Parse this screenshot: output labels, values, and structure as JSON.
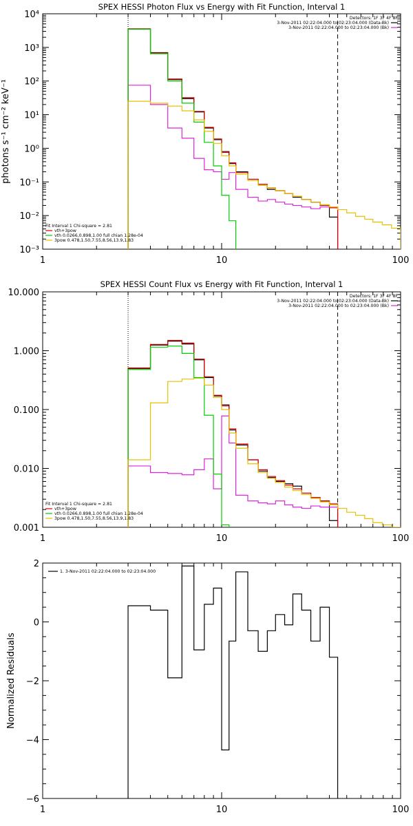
{
  "chart_data": [
    {
      "type": "line",
      "title": "SPEX HESSI Photon Flux vs Energy with Fit Function, Interval 1",
      "xlabel": "",
      "ylabel": "photons s⁻¹ cm⁻² keV⁻¹",
      "xscale": "log",
      "yscale": "log",
      "xlim": [
        1,
        100
      ],
      "ylim": [
        0.001,
        10000
      ],
      "x_ticks": [
        1,
        10,
        100
      ],
      "x_tick_labels": [
        "1",
        "10",
        "100"
      ],
      "y_ticks": [
        0.001,
        0.01,
        0.1,
        1,
        10,
        100,
        1000,
        10000
      ],
      "y_tick_labels": [
        "10⁻³",
        "10⁻²",
        "10⁻¹",
        "10⁰",
        "10¹",
        "10²",
        "10³",
        "10⁴"
      ],
      "grid": false,
      "vlines": [
        {
          "x": 3,
          "style": "dotted"
        },
        {
          "x": 44.5,
          "style": "dashed"
        }
      ],
      "legend_top_right": {
        "placement": "top-right",
        "header": "Detectors: 1F 3F 4F 8F",
        "lines": [
          {
            "text": "3-Nov-2011 02:22:04.000 to 02:23:04.000 (Data-Bk)",
            "color": "#000000"
          },
          {
            "text": "3-Nov-2011 02:22:04.000 to 02:23:04.000 (Bk)",
            "color": "#dd22dd"
          }
        ]
      },
      "legend_bottom_left": {
        "placement": "bottom-left",
        "header": "Fit Interval  1    Chi-square = 2.81",
        "lines": [
          {
            "text": "vth+3pow",
            "color": "#dd0000"
          },
          {
            "text": "vth 0.0266,0.898,1.00  full chian 1.28e-04",
            "color": "#00cc00"
          },
          {
            "text": "3pow 0.478,1.50,7.55,8.56,13.9,1.83",
            "color": "#e6c000"
          }
        ]
      },
      "series": [
        {
          "color": "#000000",
          "edges": [
            3,
            4,
            5,
            6,
            7,
            8,
            9,
            10,
            11,
            12,
            14,
            16,
            18,
            20,
            22.5,
            25,
            28,
            31.5,
            35.5,
            40,
            44.5
          ],
          "values": [
            3500,
            700,
            110,
            30,
            12,
            4,
            1.8,
            0.8,
            0.35,
            0.2,
            0.12,
            0.08,
            0.06,
            0.055,
            0.045,
            0.035,
            0.03,
            0.025,
            0.02,
            0.009
          ]
        },
        {
          "color": "#dd22dd",
          "edges": [
            3,
            4,
            5,
            6,
            7,
            8,
            9,
            10,
            11,
            12,
            14,
            16,
            18,
            20,
            22.5,
            25,
            28,
            31.5,
            35.5,
            40,
            44.5
          ],
          "values": [
            75,
            20,
            4,
            2,
            0.5,
            0.23,
            0.2,
            0.12,
            0.19,
            0.06,
            0.035,
            0.027,
            0.03,
            0.025,
            0.022,
            0.02,
            0.018,
            0.016,
            0.018,
            0.018
          ]
        },
        {
          "color": "#dd0000",
          "edges": [
            3,
            4,
            5,
            6,
            7,
            8,
            9,
            10,
            11,
            12,
            14,
            16,
            18,
            20,
            22.5,
            25,
            28,
            31.5,
            35.5,
            40,
            44.5
          ],
          "values": [
            3600,
            680,
            115,
            32,
            12.5,
            4.2,
            1.9,
            0.75,
            0.37,
            0.19,
            0.12,
            0.085,
            0.066,
            0.055,
            0.045,
            0.037,
            0.03,
            0.025,
            0.02,
            0.017
          ]
        },
        {
          "color": "#00cc00",
          "edges": [
            3,
            4,
            5,
            6,
            7,
            8,
            9,
            10,
            11,
            12,
            14
          ],
          "values": [
            3500,
            650,
            100,
            22,
            6,
            1.5,
            0.3,
            0.04,
            0.007,
            0.0009
          ]
        },
        {
          "color": "#e6c000",
          "edges": [
            3,
            4,
            5,
            6,
            7,
            8,
            9,
            10,
            11,
            12,
            14,
            16,
            18,
            20,
            22.5,
            25,
            28,
            31.5,
            35.5,
            40,
            44.5,
            50,
            56,
            63,
            70,
            79,
            89,
            100
          ],
          "values": [
            25,
            22,
            18,
            13,
            7,
            3.2,
            1.4,
            0.6,
            0.3,
            0.17,
            0.11,
            0.08,
            0.065,
            0.055,
            0.045,
            0.037,
            0.03,
            0.025,
            0.021,
            0.018,
            0.015,
            0.012,
            0.0095,
            0.0078,
            0.0064,
            0.0053,
            0.0042
          ]
        }
      ]
    },
    {
      "type": "line",
      "title": "SPEX HESSI Count Flux vs Energy with Fit Function, Interval 1",
      "xlabel": "",
      "ylabel": "",
      "xscale": "log",
      "yscale": "log",
      "xlim": [
        1,
        100
      ],
      "ylim": [
        0.001,
        10
      ],
      "x_ticks": [
        1,
        10,
        100
      ],
      "x_tick_labels": [
        "1",
        "10",
        "100"
      ],
      "y_ticks": [
        0.001,
        0.01,
        0.1,
        1,
        10
      ],
      "y_tick_labels": [
        "0.001",
        "0.010",
        "0.100",
        "1.000",
        "10.000"
      ],
      "grid": false,
      "vlines": [
        {
          "x": 3,
          "style": "dotted"
        },
        {
          "x": 44.5,
          "style": "dashed"
        }
      ],
      "legend_top_right": {
        "placement": "top-right",
        "header": "Detectors: 1F 3F 4F 8F",
        "lines": [
          {
            "text": "3-Nov-2011 02:22:04.000 to 02:23:04.000 (Data-Bk)",
            "color": "#000000"
          },
          {
            "text": "3-Nov-2011 02:22:04.000 to 02:23:04.000 (Bk)",
            "color": "#dd22dd"
          }
        ]
      },
      "legend_bottom_left": {
        "placement": "bottom-left",
        "header": "Fit Interval  1    Chi-square = 2.81",
        "lines": [
          {
            "text": "vth+3pow",
            "color": "#dd0000"
          },
          {
            "text": "vth 0.0266,0.898,1.00  full chian 1.28e-04",
            "color": "#00cc00"
          },
          {
            "text": "3pow 0.478,1.50,7.55,8.56,13.9,1.83",
            "color": "#e6c000"
          }
        ]
      },
      "series": [
        {
          "color": "#000000",
          "edges": [
            3,
            4,
            5,
            6,
            7,
            8,
            9,
            10,
            11,
            12,
            14,
            16,
            18,
            20,
            22.5,
            25,
            28,
            31.5,
            35.5,
            40,
            44.5
          ],
          "values": [
            0.5,
            1.25,
            1.45,
            1.3,
            0.7,
            0.35,
            0.17,
            0.12,
            0.045,
            0.025,
            0.014,
            0.009,
            0.007,
            0.006,
            0.0055,
            0.005,
            0.0038,
            0.0032,
            0.0028,
            0.0013
          ]
        },
        {
          "color": "#dd22dd",
          "edges": [
            3,
            4,
            5,
            6,
            7,
            8,
            9,
            10,
            11,
            12,
            14,
            16,
            18,
            20,
            22.5,
            25,
            28,
            31.5,
            35.5,
            40,
            44.5
          ],
          "values": [
            0.011,
            0.0085,
            0.0082,
            0.0078,
            0.0095,
            0.0145,
            0.0045,
            0.078,
            0.027,
            0.0035,
            0.0028,
            0.0026,
            0.0025,
            0.0028,
            0.0024,
            0.0022,
            0.0021,
            0.0023,
            0.0022,
            0.0022
          ]
        },
        {
          "color": "#dd0000",
          "edges": [
            3,
            4,
            5,
            6,
            7,
            8,
            9,
            10,
            11,
            12,
            14,
            16,
            18,
            20,
            22.5,
            25,
            28,
            31.5,
            35.5,
            40,
            44.5
          ],
          "values": [
            0.51,
            1.28,
            1.5,
            1.35,
            0.72,
            0.36,
            0.175,
            0.115,
            0.047,
            0.026,
            0.014,
            0.0095,
            0.0073,
            0.0062,
            0.0052,
            0.0045,
            0.0038,
            0.0032,
            0.0028,
            0.0025
          ]
        },
        {
          "color": "#00cc00",
          "edges": [
            3,
            4,
            5,
            6,
            7,
            8,
            9,
            10,
            11,
            12
          ],
          "values": [
            0.48,
            1.15,
            1.2,
            0.9,
            0.35,
            0.08,
            0.008,
            0.0011,
            0.0009
          ]
        },
        {
          "color": "#e6c000",
          "edges": [
            3,
            4,
            5,
            6,
            7,
            8,
            9,
            10,
            11,
            12,
            14,
            16,
            18,
            20,
            22.5,
            25,
            28,
            31.5,
            35.5,
            40,
            44.5,
            50,
            56,
            63,
            70,
            79,
            89,
            100
          ],
          "values": [
            0.014,
            0.13,
            0.3,
            0.33,
            0.34,
            0.26,
            0.16,
            0.1,
            0.04,
            0.022,
            0.012,
            0.0085,
            0.0068,
            0.0058,
            0.0048,
            0.0042,
            0.0036,
            0.0031,
            0.0027,
            0.0024,
            0.0021,
            0.0018,
            0.0016,
            0.0014,
            0.0012,
            0.0011,
            0.001
          ]
        }
      ]
    },
    {
      "type": "line",
      "title": "",
      "xlabel": "",
      "ylabel": "Normalized Residuals",
      "xscale": "log",
      "yscale": "linear",
      "xlim": [
        1,
        100
      ],
      "ylim": [
        -6,
        2
      ],
      "x_ticks": [
        1,
        10,
        100
      ],
      "x_tick_labels": [
        "1",
        "10",
        "100"
      ],
      "y_ticks": [
        -6,
        -4,
        -2,
        0,
        2
      ],
      "y_tick_labels": [
        "−6",
        "−4",
        "−2",
        "0",
        "2"
      ],
      "grid": false,
      "legend_top_left": {
        "placement": "top-left",
        "lines": [
          {
            "text": "1.  3-Nov-2011 02:22:04.000 to 02:23:04.000",
            "color": "#000000"
          }
        ]
      },
      "series": [
        {
          "color": "#000000",
          "edges": [
            3,
            4,
            5,
            6,
            7,
            8,
            9,
            10,
            11,
            12,
            14,
            16,
            18,
            20,
            22.5,
            25,
            28,
            31.5,
            35.5,
            40,
            44.5
          ],
          "values": [
            0.55,
            0.4,
            -1.9,
            1.9,
            -0.95,
            0.6,
            1.15,
            -4.35,
            -0.65,
            1.7,
            -0.3,
            -1.0,
            -0.3,
            0.25,
            -0.1,
            0.95,
            0.4,
            -0.65,
            0.5,
            -1.2
          ],
          "baseline": -6
        }
      ]
    }
  ]
}
